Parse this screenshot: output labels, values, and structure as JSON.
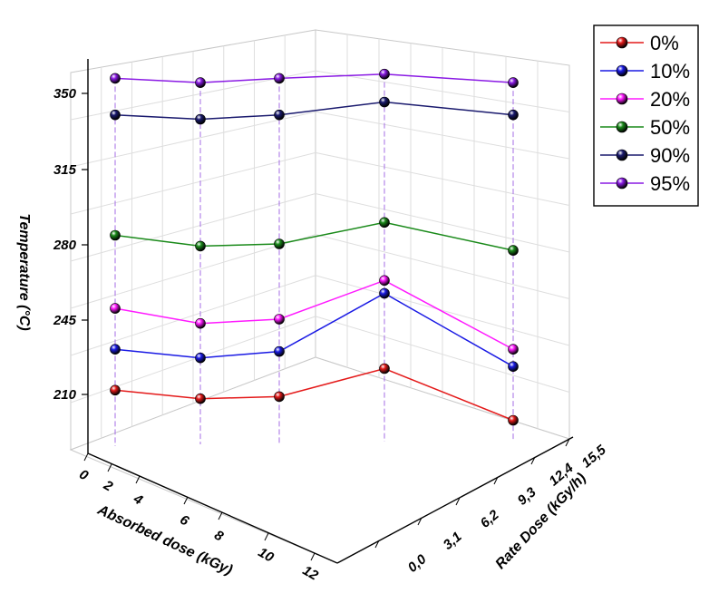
{
  "chart_data": {
    "type": "line",
    "subtype": "3d-line-plot",
    "title": "",
    "zlabel": "Temperature  (°C)",
    "xlabel": "Absorbed dose (kGy)",
    "ylabel": "Rate Dose (kGy/h)",
    "z_ticks": [
      "210",
      "245",
      "280",
      "315",
      "350"
    ],
    "z_range": [
      190,
      360
    ],
    "x_ticks": [
      "0",
      "2",
      "4",
      "6",
      "8",
      "10",
      "12"
    ],
    "y_ticks": [
      "0,0",
      "3,1",
      "6,2",
      "9,3",
      "12,4",
      "15,5"
    ],
    "grid": true,
    "legend_position": "top-right",
    "x": [
      1,
      3,
      5,
      7.5,
      11
    ],
    "series": [
      {
        "name": "0%",
        "color": "#e41a1a",
        "values": [
          212,
          208,
          209,
          222,
          198
        ]
      },
      {
        "name": "10%",
        "color": "#1a1ae4",
        "values": [
          231,
          227,
          230,
          257,
          223
        ]
      },
      {
        "name": "20%",
        "color": "#ff1aff",
        "values": [
          250,
          243,
          245,
          263,
          231
        ]
      },
      {
        "name": "50%",
        "color": "#1a8a1a",
        "values": [
          284,
          279,
          280,
          290,
          277
        ]
      },
      {
        "name": "90%",
        "color": "#1a1a6e",
        "values": [
          340,
          338,
          340,
          346,
          340
        ]
      },
      {
        "name": "95%",
        "color": "#8a1ae4",
        "values": [
          357,
          355,
          357,
          359,
          355
        ]
      }
    ]
  }
}
